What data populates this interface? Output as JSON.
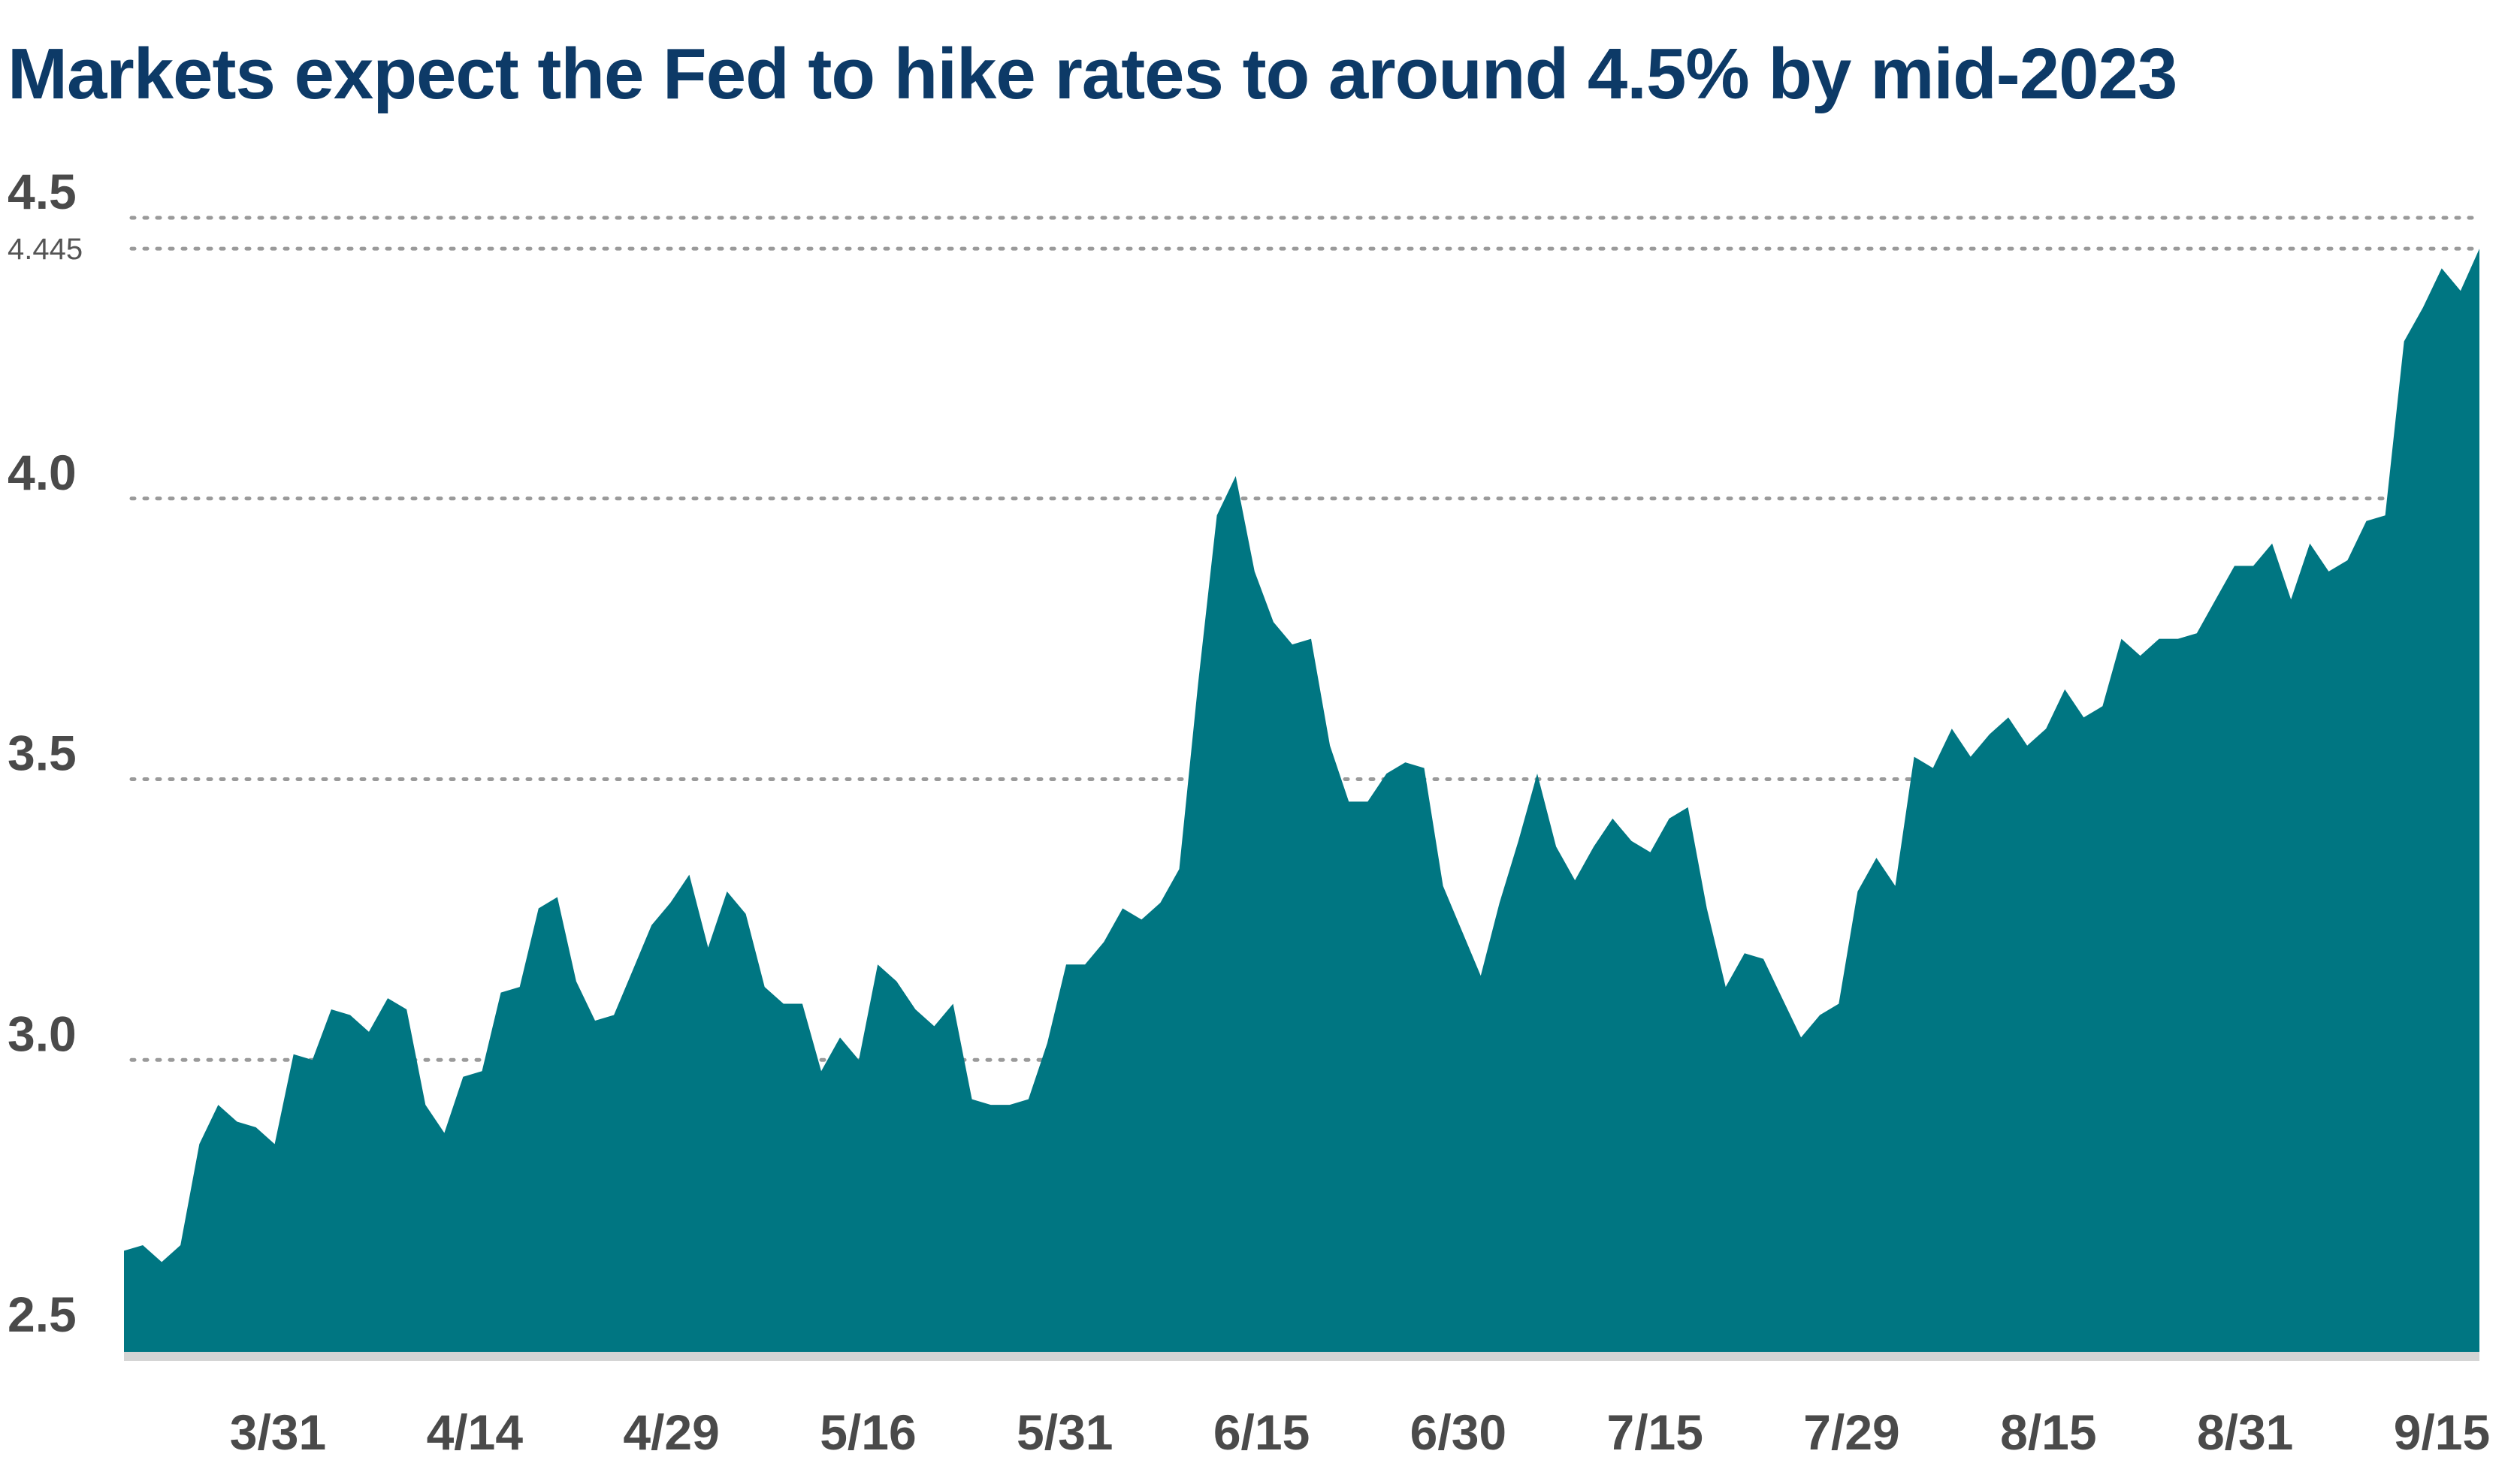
{
  "chart_data": {
    "type": "area",
    "title": "Markets expect the Fed to hike rates to around 4.5% by mid-2023",
    "xlabel": "",
    "ylabel": "",
    "ylim": [
      2.48,
      4.5
    ],
    "y_ticks": [
      "2.5",
      "3.0",
      "3.5",
      "4.0",
      "4.5"
    ],
    "y_tick_values": [
      2.5,
      3.0,
      3.5,
      4.0,
      4.5
    ],
    "last_value_label": "4.445",
    "last_value": 4.445,
    "grid": true,
    "color": "#007682",
    "x_ticks": [
      "3/31",
      "4/14",
      "4/29",
      "5/16",
      "5/31",
      "6/15",
      "6/30",
      "7/15",
      "7/29",
      "8/15",
      "8/31",
      "9/15"
    ],
    "series": [
      {
        "values": [
          2.66,
          2.67,
          2.64,
          2.67,
          2.85,
          2.92,
          2.89,
          2.88,
          2.85,
          3.01,
          3.0,
          3.09,
          3.08,
          3.05,
          3.11,
          3.09,
          2.92,
          2.87,
          2.97,
          2.98,
          3.12,
          3.13,
          3.27,
          3.29,
          3.14,
          3.07,
          3.08,
          3.16,
          3.24,
          3.28,
          3.33,
          3.2,
          3.3,
          3.26,
          3.13,
          3.1,
          3.1,
          2.98,
          3.04,
          3.0,
          3.17,
          3.14,
          3.09,
          3.06,
          3.1,
          2.93,
          2.92,
          2.92,
          2.93,
          3.03,
          3.17,
          3.17,
          3.21,
          3.27,
          3.25,
          3.28,
          3.34,
          3.67,
          3.97,
          4.04,
          3.87,
          3.78,
          3.74,
          3.75,
          3.56,
          3.46,
          3.46,
          3.51,
          3.53,
          3.52,
          3.31,
          3.23,
          3.15,
          3.28,
          3.39,
          3.51,
          3.38,
          3.32,
          3.38,
          3.43,
          3.39,
          3.37,
          3.43,
          3.45,
          3.27,
          3.13,
          3.19,
          3.18,
          3.11,
          3.04,
          3.08,
          3.1,
          3.3,
          3.36,
          3.31,
          3.54,
          3.52,
          3.59,
          3.54,
          3.58,
          3.61,
          3.56,
          3.59,
          3.66,
          3.61,
          3.63,
          3.75,
          3.72,
          3.75,
          3.75,
          3.76,
          3.82,
          3.88,
          3.88,
          3.92,
          3.82,
          3.92,
          3.87,
          3.89,
          3.96,
          3.97,
          4.28,
          4.34,
          4.41,
          4.37,
          4.445
        ]
      }
    ]
  }
}
